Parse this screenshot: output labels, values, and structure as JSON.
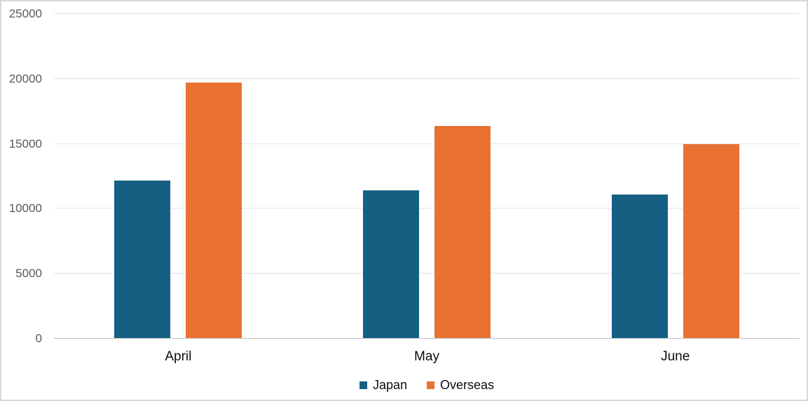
{
  "chart_data": {
    "type": "bar",
    "categories": [
      "April",
      "May",
      "June"
    ],
    "series": [
      {
        "name": "Japan",
        "color": "#156082",
        "values": [
          12200,
          11400,
          11100
        ]
      },
      {
        "name": "Overseas",
        "color": "#E97132",
        "values": [
          19700,
          16400,
          15000
        ]
      }
    ],
    "title": "",
    "xlabel": "",
    "ylabel": "",
    "ylim": [
      0,
      25000
    ],
    "yticks": [
      0,
      5000,
      10000,
      15000,
      20000,
      25000
    ],
    "ytick_format": "plain",
    "grid": true,
    "legend_position": "bottom-center"
  },
  "colors": {
    "series_japan": "#156082",
    "series_overseas": "#E97132",
    "gridline": "#e3e3e6",
    "axis_line": "#bfbfbf",
    "y_tick_label": "#595959",
    "x_tick_label": "#0d0d0d",
    "legend_text": "#0d0d0d",
    "canvas_border": "#d9d9dd",
    "background": "#ffffff"
  },
  "legend": {
    "items": [
      {
        "label": "Japan",
        "color": "#156082"
      },
      {
        "label": "Overseas",
        "color": "#E97132"
      }
    ]
  }
}
